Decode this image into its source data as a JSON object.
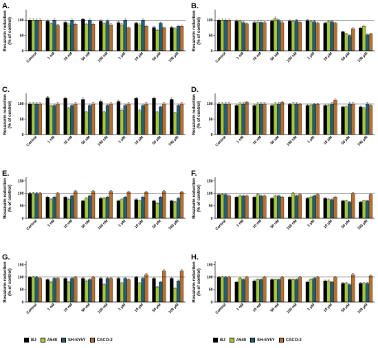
{
  "figure": {
    "y_label_line1": "Resazurin reduction",
    "y_label_line2": "(% of control)"
  },
  "colors": {
    "BJ": "#000000",
    "A549": "#a8c83c",
    "SH-SY5Y": "#1f5f7a",
    "CACO-2": "#b8702e"
  },
  "legend": [
    {
      "name": "BJ"
    },
    {
      "name": "A549"
    },
    {
      "name": "SH-SY5Y"
    },
    {
      "name": "CACO-2"
    }
  ],
  "chart_data": [
    {
      "panel": "A.",
      "type": "bar",
      "categories": [
        "Control",
        "1 nM",
        "10 nM",
        "50 nM",
        "100 nM",
        "1 μM",
        "10 μM",
        "50 μM",
        "100 μM"
      ],
      "yticks": [
        0,
        50,
        100
      ],
      "ytick_labels": [
        "0",
        "50",
        "100"
      ],
      "ylim": [
        0,
        130
      ],
      "series": [
        {
          "name": "BJ",
          "values": [
            100,
            97,
            93,
            103,
            97,
            92,
            90,
            76,
            76
          ]
        },
        {
          "name": "A549",
          "values": [
            100,
            88,
            85,
            86,
            88,
            85,
            85,
            67,
            72
          ]
        },
        {
          "name": "SH-SY5Y",
          "values": [
            100,
            100,
            100,
            100,
            97,
            100,
            100,
            90,
            80
          ]
        },
        {
          "name": "CACO-2",
          "values": [
            100,
            83,
            87,
            87,
            85,
            75,
            80,
            75,
            80
          ]
        }
      ]
    },
    {
      "panel": "B.",
      "type": "bar",
      "categories": [
        "Control",
        "1 nM",
        "10 nM",
        "50 nM",
        "100 nM",
        "1 μM",
        "10 μM",
        "50 μM",
        "100 μM"
      ],
      "yticks": [
        0,
        50,
        100
      ],
      "ytick_labels": [
        "0",
        "50",
        "100"
      ],
      "ylim": [
        0,
        130
      ],
      "series": [
        {
          "name": "BJ",
          "values": [
            100,
            97,
            92,
            97,
            97,
            98,
            90,
            62,
            74
          ]
        },
        {
          "name": "A549",
          "values": [
            100,
            95,
            93,
            106,
            95,
            95,
            95,
            55,
            80
          ]
        },
        {
          "name": "SH-SY5Y",
          "values": [
            100,
            92,
            93,
            98,
            98,
            95,
            95,
            50,
            52
          ]
        },
        {
          "name": "CACO-2",
          "values": [
            100,
            88,
            92,
            92,
            93,
            90,
            90,
            72,
            55
          ]
        }
      ]
    },
    {
      "panel": "C.",
      "type": "bar",
      "categories": [
        "Control",
        "1 nM",
        "10 nM",
        "50 nM",
        "100 nM",
        "1 μM",
        "10 μM",
        "50 μM",
        "100 μM"
      ],
      "yticks": [
        0,
        50,
        100
      ],
      "ytick_labels": [
        "0",
        "50",
        "100"
      ],
      "ylim": [
        0,
        130
      ],
      "series": [
        {
          "name": "BJ",
          "values": [
            100,
            120,
            118,
            115,
            108,
            108,
            118,
            118,
            115
          ]
        },
        {
          "name": "A549",
          "values": [
            100,
            92,
            85,
            72,
            72,
            80,
            78,
            72,
            70
          ]
        },
        {
          "name": "SH-SY5Y",
          "values": [
            100,
            95,
            95,
            95,
            95,
            95,
            95,
            90,
            95
          ]
        },
        {
          "name": "CACO-2",
          "values": [
            100,
            100,
            100,
            100,
            100,
            100,
            100,
            100,
            100
          ]
        }
      ]
    },
    {
      "panel": "D.",
      "type": "bar",
      "categories": [
        "Control",
        "1 nM",
        "10 nM",
        "50 nM",
        "100 nM",
        "1 μM",
        "10 μM",
        "50 μM",
        "100 μM"
      ],
      "yticks": [
        0,
        50,
        100
      ],
      "ytick_labels": [
        "0",
        "50",
        "100"
      ],
      "ylim": [
        0,
        130
      ],
      "series": [
        {
          "name": "BJ",
          "values": [
            100,
            95,
            95,
            95,
            98,
            95,
            95,
            90,
            90
          ]
        },
        {
          "name": "A549",
          "values": [
            100,
            100,
            100,
            100,
            100,
            95,
            95,
            90,
            85
          ]
        },
        {
          "name": "SH-SY5Y",
          "values": [
            100,
            100,
            100,
            100,
            100,
            98,
            100,
            100,
            100
          ]
        },
        {
          "name": "CACO-2",
          "values": [
            100,
            105,
            100,
            105,
            98,
            98,
            112,
            100,
            95
          ]
        }
      ]
    },
    {
      "panel": "E.",
      "type": "bar",
      "categories": [
        "Control",
        "1 nM",
        "10 nM",
        "50 nM",
        "100 nM",
        "1 μM",
        "10 μM",
        "50 μM",
        "100 μM"
      ],
      "yticks": [
        0,
        50,
        100,
        150
      ],
      "ytick_labels": [
        "0",
        "50",
        "100",
        "150"
      ],
      "ylim": [
        0,
        160
      ],
      "series": [
        {
          "name": "BJ",
          "values": [
            100,
            85,
            85,
            70,
            80,
            70,
            75,
            70,
            70
          ]
        },
        {
          "name": "A549",
          "values": [
            100,
            75,
            75,
            80,
            80,
            75,
            70,
            60,
            65
          ]
        },
        {
          "name": "SH-SY5Y",
          "values": [
            100,
            85,
            90,
            90,
            85,
            85,
            85,
            85,
            80
          ]
        },
        {
          "name": "CACO-2",
          "values": [
            100,
            100,
            108,
            108,
            108,
            105,
            105,
            108,
            105
          ]
        }
      ]
    },
    {
      "panel": "F.",
      "type": "bar",
      "categories": [
        "Control",
        "1 nM",
        "10 nM",
        "50 nM",
        "100 nM",
        "1 μM",
        "10 μM",
        "50 μM",
        "100 μM"
      ],
      "yticks": [
        0,
        50,
        100,
        150
      ],
      "ytick_labels": [
        "0",
        "50",
        "100",
        "150"
      ],
      "ylim": [
        0,
        160
      ],
      "series": [
        {
          "name": "BJ",
          "values": [
            95,
            85,
            85,
            80,
            85,
            80,
            80,
            70,
            65
          ]
        },
        {
          "name": "A549",
          "values": [
            95,
            90,
            95,
            90,
            100,
            85,
            75,
            70,
            70
          ]
        },
        {
          "name": "SH-SY5Y",
          "values": [
            95,
            90,
            90,
            90,
            90,
            90,
            75,
            65,
            70
          ]
        },
        {
          "name": "CACO-2",
          "values": [
            90,
            90,
            90,
            85,
            95,
            95,
            85,
            100,
            95
          ]
        }
      ]
    },
    {
      "panel": "G.",
      "type": "bar",
      "categories": [
        "Control",
        "1 nM",
        "10 nM",
        "50 nM",
        "100 nM",
        "1 μM",
        "10 μM",
        "50 μM",
        "100 μM"
      ],
      "yticks": [
        0,
        50,
        100,
        150
      ],
      "ytick_labels": [
        "0",
        "50",
        "100",
        "150"
      ],
      "ylim": [
        0,
        160
      ],
      "series": [
        {
          "name": "BJ",
          "values": [
            100,
            90,
            95,
            95,
            95,
            95,
            100,
            95,
            95
          ]
        },
        {
          "name": "A549",
          "values": [
            100,
            80,
            80,
            85,
            70,
            75,
            75,
            60,
            55
          ]
        },
        {
          "name": "SH-SY5Y",
          "values": [
            100,
            95,
            95,
            90,
            95,
            95,
            95,
            80,
            85
          ]
        },
        {
          "name": "CACO-2",
          "values": [
            95,
            95,
            100,
            100,
            95,
            90,
            110,
            125,
            125
          ]
        }
      ]
    },
    {
      "panel": "H.",
      "type": "bar",
      "categories": [
        "Control",
        "1 nM",
        "10 nM",
        "50 nM",
        "100 nM",
        "1 μM",
        "10 μM",
        "50 μM",
        "100 μM"
      ],
      "yticks": [
        0,
        50,
        100,
        150
      ],
      "ytick_labels": [
        "0",
        "50",
        "100",
        "150"
      ],
      "ylim": [
        0,
        160
      ],
      "series": [
        {
          "name": "BJ",
          "values": [
            100,
            80,
            85,
            90,
            90,
            80,
            85,
            75,
            75
          ]
        },
        {
          "name": "A549",
          "values": [
            100,
            95,
            90,
            90,
            90,
            90,
            85,
            75,
            75
          ]
        },
        {
          "name": "SH-SY5Y",
          "values": [
            100,
            90,
            90,
            90,
            90,
            95,
            80,
            70,
            75
          ]
        },
        {
          "name": "CACO-2",
          "values": [
            100,
            100,
            100,
            100,
            100,
            100,
            100,
            110,
            105
          ]
        }
      ]
    }
  ]
}
